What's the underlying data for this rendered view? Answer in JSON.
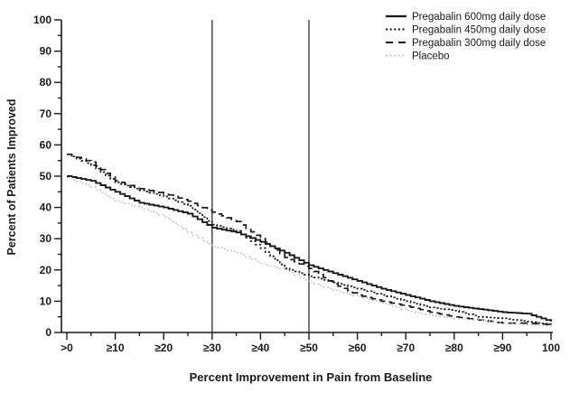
{
  "figure": {
    "background_color": "#ffffff",
    "axis_color": "#1a1a1a",
    "reference_line_color": "#4d4d4d"
  },
  "chart_data": {
    "type": "line",
    "subtype": "step-responder-curves",
    "title": "",
    "xlabel": "Percent Improvement in Pain from Baseline",
    "ylabel": "Percent of Patients Improved",
    "xlim": [
      0,
      100
    ],
    "ylim": [
      0,
      100
    ],
    "grid": false,
    "legend_position": "top-right",
    "minor_tick_step": 5,
    "major_tick_step": 10,
    "x_tick_values": [
      0,
      10,
      20,
      30,
      40,
      50,
      60,
      70,
      80,
      90,
      100
    ],
    "x_tick_labels": [
      ">0",
      "≥10",
      "≥20",
      "≥30",
      "≥40",
      "≥50",
      "≥60",
      "≥70",
      "≥80",
      "≥90",
      "100"
    ],
    "y_tick_values": [
      0,
      10,
      20,
      30,
      40,
      50,
      60,
      70,
      80,
      90,
      100
    ],
    "y_tick_labels": [
      "0",
      "10",
      "20",
      "30",
      "40",
      "50",
      "60",
      "70",
      "80",
      "90",
      "100"
    ],
    "reference_lines_x": [
      30,
      50
    ],
    "x": [
      0,
      5,
      10,
      15,
      20,
      25,
      30,
      35,
      40,
      45,
      50,
      55,
      60,
      65,
      70,
      75,
      80,
      85,
      90,
      95,
      100
    ],
    "series": [
      {
        "name": "Pregabalin 600mg daily dose",
        "slug": "pregabalin-600mg",
        "line_style": "solid",
        "color": "#1a1a1a",
        "stroke_width": 1.9,
        "values": [
          50,
          48.5,
          45,
          41.5,
          40,
          38,
          33.5,
          32,
          29,
          25.5,
          21.5,
          19,
          16.5,
          14,
          12,
          10,
          8.5,
          7.5,
          6.5,
          6,
          3.5
        ]
      },
      {
        "name": "Pregabalin 450mg daily dose",
        "slug": "pregabalin-450mg",
        "line_style": "dense-dotted",
        "color": "#1a1a1a",
        "stroke_width": 1.7,
        "values": [
          57,
          53.5,
          48,
          45.5,
          43.5,
          40.5,
          34.5,
          32.5,
          27,
          20.5,
          18,
          16,
          14,
          12,
          10,
          8,
          7,
          5,
          4.5,
          3.5,
          2.5
        ]
      },
      {
        "name": "Pregabalin 300mg daily dose",
        "slug": "pregabalin-300mg",
        "line_style": "dashed",
        "color": "#1a1a1a",
        "stroke_width": 1.7,
        "values": [
          57,
          54.5,
          48.5,
          46,
          44.5,
          42,
          38.5,
          35.5,
          30,
          24,
          20.5,
          15.5,
          12,
          10,
          8.5,
          6.5,
          5,
          4,
          3,
          3,
          2.5
        ]
      },
      {
        "name": "Placebo",
        "slug": "placebo",
        "line_style": "dotted",
        "color": "#b3b3b3",
        "stroke_width": 1.4,
        "values": [
          49.5,
          46.5,
          42,
          40,
          37,
          32,
          27.5,
          25.5,
          22,
          20,
          16,
          13.5,
          11.5,
          9.5,
          7,
          5.5,
          4.5,
          4,
          3,
          2.5,
          2
        ]
      }
    ]
  }
}
